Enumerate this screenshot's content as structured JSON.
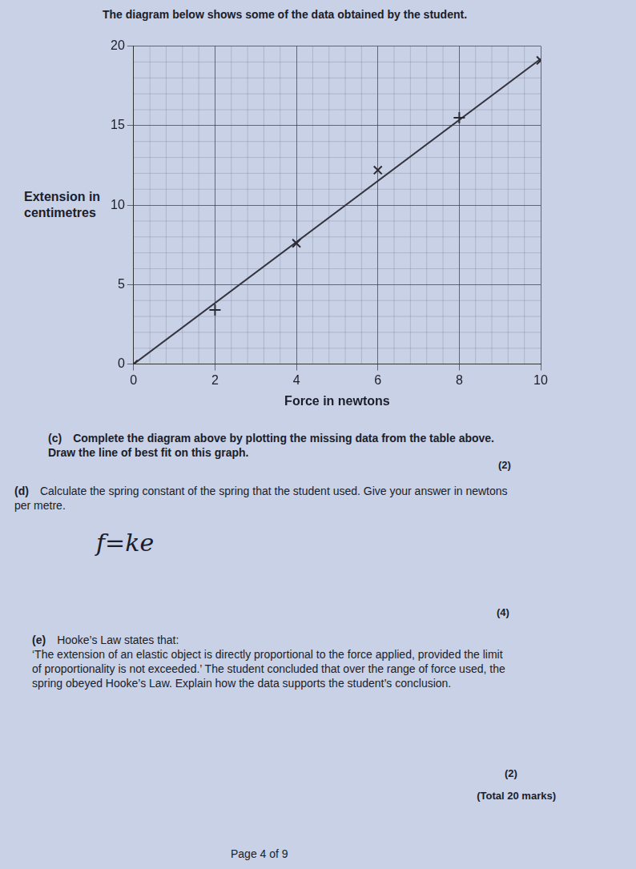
{
  "intro": "The diagram below shows some of the data obtained by the student.",
  "chart_data": {
    "type": "scatter",
    "x_label": "Force in newtons",
    "y_label": "Extension in\ncentimetres",
    "xlim": [
      0,
      10
    ],
    "xticks": [
      0,
      2,
      4,
      6,
      8,
      10
    ],
    "ylim": [
      0,
      20
    ],
    "yticks": [
      0,
      5,
      10,
      15,
      20
    ],
    "grid": true,
    "series": [
      {
        "type": "scatter",
        "marker": "x",
        "color": "#2a2a33",
        "x": [
          0,
          4,
          6,
          10
        ],
        "values": [
          0,
          7.6,
          12.2,
          19.1
        ]
      },
      {
        "type": "scatter",
        "marker": "plus",
        "color": "#2a2a33",
        "x": [
          2,
          8
        ],
        "values": [
          3.4,
          15.5
        ]
      },
      {
        "type": "line",
        "line_style": "solid",
        "color": "#33343d",
        "x": [
          0,
          10
        ],
        "values": [
          0,
          19.2
        ]
      }
    ]
  },
  "questions": [
    {
      "label": "(c)",
      "text": "Complete the diagram above by plotting the missing data from the table above. Draw the line of best fit on this graph.",
      "marks": "(2)"
    },
    {
      "label": "(d)",
      "text": "Calculate the spring constant of the spring that the student used. Give your answer in newtons per metre.",
      "marks": "(4)",
      "answer": "f=ke"
    },
    {
      "label": "(e)",
      "text": "Hooke’s Law states that:\n‘The extension of an elastic object is directly proportional to the force applied, provided the limit of proportionality is not exceeded.’ The student concluded that over the range of force used, the spring obeyed Hooke’s Law. Explain how the data supports the student’s conclusion.",
      "marks": "(2)"
    }
  ],
  "total": "(Total 20 marks)",
  "footer": "Page 4 of 9"
}
